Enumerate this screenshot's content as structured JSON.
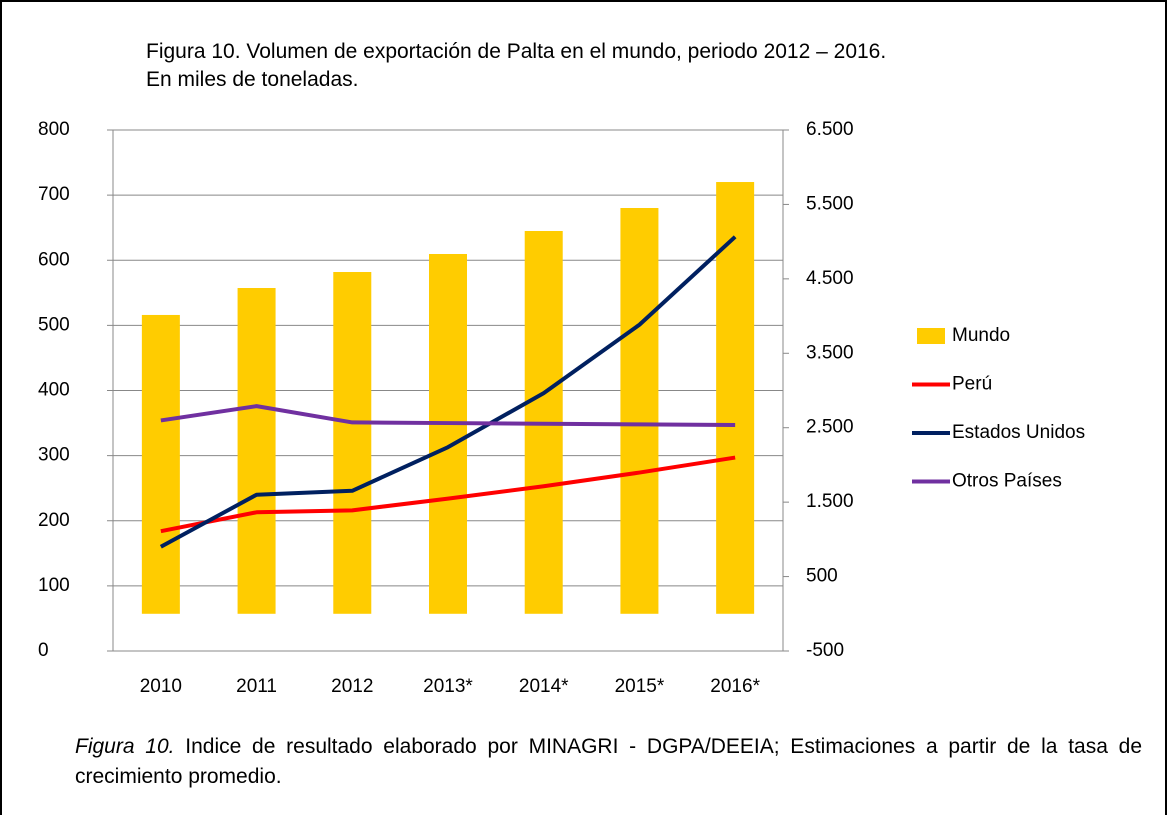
{
  "chart_data": {
    "type": "bar_line",
    "title": "Figura 10. Volumen de exportación de Palta en el mundo, periodo 2012 – 2016. En miles de toneladas.",
    "caption_label": "Figura 10.",
    "caption_text": "Indice de resultado elaborado por MINAGRI - DGPA/DEEIA; Estimaciones a partir de la tasa de crecimiento promedio.",
    "categories": [
      "2010",
      "2011",
      "2012",
      "2013*",
      "2014*",
      "2015*",
      "2016*"
    ],
    "ylim": [
      0,
      800
    ],
    "yticks": [
      0,
      100,
      200,
      300,
      400,
      500,
      600,
      700,
      800
    ],
    "y2lim": [
      -500,
      6500
    ],
    "y2ticks": [
      -500,
      500,
      {
        "value": 1500,
        "label": "1.500"
      },
      {
        "value": 2500,
        "label": "2.500"
      },
      {
        "value": 3500,
        "label": "3.500"
      },
      {
        "value": 4500,
        "label": "4.500"
      },
      {
        "value": 5500,
        "label": "5.500"
      },
      {
        "value": 6500,
        "label": "6.500"
      }
    ],
    "legend": "right",
    "series": [
      {
        "name": "Mundo",
        "kind": "bar",
        "axis": "y2",
        "color": "#ffcc00",
        "values": [
          4015,
          4377,
          4592,
          4834,
          5143,
          5452,
          5801
        ]
      },
      {
        "name": "Perú",
        "kind": "line",
        "color": "#ff0000",
        "values": [
          184,
          213,
          216,
          234,
          253,
          274,
          297
        ]
      },
      {
        "name": "Estados Unidos",
        "kind": "line",
        "color": "#002060",
        "values": [
          160,
          240,
          246,
          313,
          396,
          501,
          636
        ]
      },
      {
        "name": "Otros Países",
        "kind": "line",
        "color": "#7030a0",
        "values": [
          354,
          376,
          351,
          350,
          349,
          348,
          347
        ]
      }
    ]
  }
}
